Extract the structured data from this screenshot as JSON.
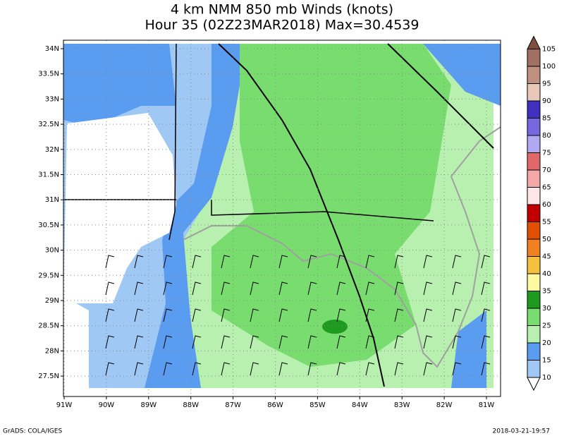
{
  "title": [
    "4 km NMM 850 mb Winds (knots)",
    "Hour 35 (02Z23MAR2018) Max=30.4539"
  ],
  "lat_labels": [
    "34N",
    "33.5N",
    "33N",
    "32.5N",
    "32N",
    "31.5N",
    "31N",
    "30.5N",
    "30N",
    "29.5N",
    "29N",
    "28.5N",
    "28N",
    "27.5N"
  ],
  "lon_labels": [
    "91W",
    "90W",
    "89W",
    "88W",
    "87W",
    "86W",
    "85W",
    "84W",
    "83W",
    "82W",
    "81W"
  ],
  "colorbar": {
    "levels": [
      10,
      15,
      20,
      25,
      30,
      35,
      40,
      45,
      50,
      55,
      60,
      65,
      70,
      75,
      80,
      85,
      90,
      95,
      100,
      105
    ],
    "colors": [
      "#ffffff",
      "#a0c8f5",
      "#5a9cf0",
      "#b8f0b0",
      "#78dc6e",
      "#1e9b1e",
      "#fffaa0",
      "#f5c040",
      "#f08020",
      "#e05000",
      "#c00000",
      "#ffe6e6",
      "#f5a8a8",
      "#e06868",
      "#b0a8f0",
      "#7868e0",
      "#4030c0",
      "#e8c8b8",
      "#c09080",
      "#a07060",
      "#80503c"
    ]
  },
  "footer": {
    "left": "GrADS: COLA/IGES",
    "right": "2018-03-21-19:57"
  }
}
